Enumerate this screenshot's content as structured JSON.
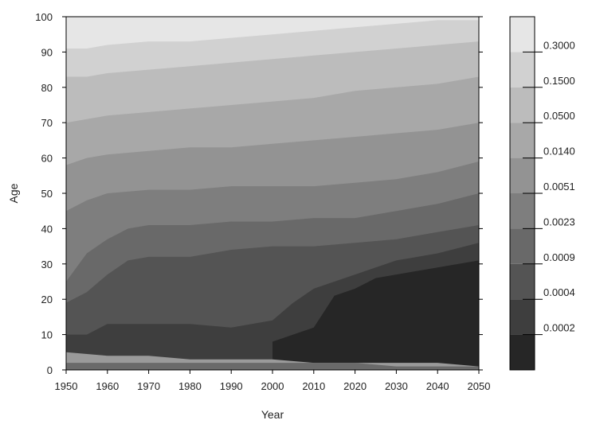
{
  "chart_data": {
    "type": "heatmap",
    "title": "",
    "xlabel": "Year",
    "ylabel": "Age",
    "xlim": [
      1950,
      2050
    ],
    "ylim": [
      0,
      100
    ],
    "x_ticks": [
      "1950",
      "1960",
      "1970",
      "1980",
      "1990",
      "2000",
      "2010",
      "2020",
      "2030",
      "2040",
      "2050"
    ],
    "y_ticks": [
      "0",
      "10",
      "20",
      "30",
      "40",
      "50",
      "60",
      "70",
      "80",
      "90",
      "100"
    ],
    "colorbar": {
      "labels": [
        "0.3000",
        "0.1500",
        "0.0500",
        "0.0140",
        "0.0051",
        "0.0023",
        "0.0009",
        "0.0004",
        "0.0002"
      ],
      "colors": [
        "#e6e6e6",
        "#d1d1d1",
        "#bcbcbc",
        "#a8a8a8",
        "#939393",
        "#7e7e7e",
        "#696969",
        "#545454",
        "#3e3e3e",
        "#262626"
      ]
    },
    "contour_boundaries": [
      {
        "level": "0.0002",
        "points": [
          [
            2000,
            0
          ],
          [
            2000,
            8
          ],
          [
            2005,
            10
          ],
          [
            2010,
            12
          ],
          [
            2015,
            21
          ],
          [
            2020,
            23
          ],
          [
            2025,
            26
          ],
          [
            2030,
            27
          ],
          [
            2040,
            29
          ],
          [
            2050,
            31
          ],
          [
            2050,
            0
          ]
        ]
      },
      {
        "level": "0.0004",
        "points": [
          [
            1950,
            10
          ],
          [
            1955,
            10
          ],
          [
            1960,
            13
          ],
          [
            1970,
            13
          ],
          [
            1980,
            13
          ],
          [
            1990,
            12
          ],
          [
            2000,
            14
          ],
          [
            2005,
            19
          ],
          [
            2010,
            23
          ],
          [
            2020,
            27
          ],
          [
            2030,
            31
          ],
          [
            2040,
            33
          ],
          [
            2050,
            36
          ]
        ]
      },
      {
        "level": "0.0009",
        "points": [
          [
            1950,
            19
          ],
          [
            1955,
            22
          ],
          [
            1960,
            27
          ],
          [
            1965,
            31
          ],
          [
            1970,
            32
          ],
          [
            1980,
            32
          ],
          [
            1990,
            34
          ],
          [
            2000,
            35
          ],
          [
            2010,
            35
          ],
          [
            2020,
            36
          ],
          [
            2030,
            37
          ],
          [
            2040,
            39
          ],
          [
            2050,
            41
          ]
        ]
      },
      {
        "level": "0.0023",
        "points": [
          [
            1950,
            25
          ],
          [
            1955,
            33
          ],
          [
            1960,
            37
          ],
          [
            1965,
            40
          ],
          [
            1970,
            41
          ],
          [
            1980,
            41
          ],
          [
            1990,
            42
          ],
          [
            2000,
            42
          ],
          [
            2010,
            43
          ],
          [
            2020,
            43
          ],
          [
            2030,
            45
          ],
          [
            2040,
            47
          ],
          [
            2050,
            50
          ]
        ]
      },
      {
        "level": "0.0051",
        "points": [
          [
            1950,
            45
          ],
          [
            1955,
            48
          ],
          [
            1960,
            50
          ],
          [
            1970,
            51
          ],
          [
            1980,
            51
          ],
          [
            1990,
            52
          ],
          [
            2000,
            52
          ],
          [
            2010,
            52
          ],
          [
            2020,
            53
          ],
          [
            2030,
            54
          ],
          [
            2040,
            56
          ],
          [
            2050,
            59
          ]
        ]
      },
      {
        "level": "0.0140",
        "points": [
          [
            1950,
            58
          ],
          [
            1955,
            60
          ],
          [
            1960,
            61
          ],
          [
            1970,
            62
          ],
          [
            1980,
            63
          ],
          [
            1990,
            63
          ],
          [
            2000,
            64
          ],
          [
            2010,
            65
          ],
          [
            2020,
            66
          ],
          [
            2030,
            67
          ],
          [
            2040,
            68
          ],
          [
            2050,
            70
          ]
        ]
      },
      {
        "level": "0.0500",
        "points": [
          [
            1950,
            70
          ],
          [
            1955,
            71
          ],
          [
            1960,
            72
          ],
          [
            1970,
            73
          ],
          [
            1980,
            74
          ],
          [
            1990,
            75
          ],
          [
            2000,
            76
          ],
          [
            2010,
            77
          ],
          [
            2020,
            79
          ],
          [
            2030,
            80
          ],
          [
            2040,
            81
          ],
          [
            2050,
            83
          ]
        ]
      },
      {
        "level": "0.1500",
        "points": [
          [
            1950,
            83
          ],
          [
            1955,
            83
          ],
          [
            1960,
            84
          ],
          [
            1970,
            85
          ],
          [
            1980,
            86
          ],
          [
            1990,
            87
          ],
          [
            2000,
            88
          ],
          [
            2010,
            89
          ],
          [
            2020,
            90
          ],
          [
            2030,
            91
          ],
          [
            2040,
            92
          ],
          [
            2050,
            93
          ]
        ]
      },
      {
        "level": "0.3000",
        "points": [
          [
            1950,
            91
          ],
          [
            1955,
            91
          ],
          [
            1960,
            92
          ],
          [
            1970,
            93
          ],
          [
            1980,
            93
          ],
          [
            1990,
            94
          ],
          [
            2000,
            95
          ],
          [
            2010,
            96
          ],
          [
            2020,
            97
          ],
          [
            2030,
            98
          ],
          [
            2040,
            99
          ],
          [
            2050,
            99
          ]
        ]
      }
    ],
    "low_age_bands": [
      {
        "points": [
          [
            1950,
            2
          ],
          [
            1960,
            2
          ],
          [
            1970,
            2
          ],
          [
            1980,
            2
          ],
          [
            1990,
            2
          ],
          [
            2000,
            2
          ],
          [
            2010,
            2
          ],
          [
            2020,
            2
          ],
          [
            2030,
            1
          ],
          [
            2040,
            1
          ],
          [
            2050,
            1
          ]
        ]
      },
      {
        "points": [
          [
            1950,
            5
          ],
          [
            1960,
            4
          ],
          [
            1970,
            4
          ],
          [
            1980,
            3
          ],
          [
            1990,
            3
          ],
          [
            2000,
            3
          ],
          [
            2010,
            2
          ],
          [
            2020,
            2
          ],
          [
            2030,
            2
          ],
          [
            2040,
            2
          ],
          [
            2050,
            1
          ]
        ]
      }
    ]
  }
}
